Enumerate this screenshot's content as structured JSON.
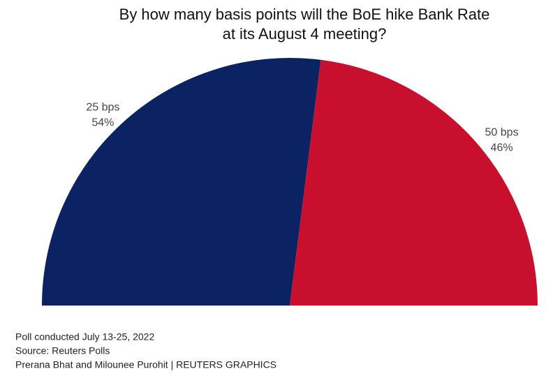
{
  "chart_data": {
    "type": "pie",
    "half": true,
    "title": [
      "By how many basis points will the BoE hike Bank Rate",
      "at its August 4 meeting?"
    ],
    "categories": [
      "25 bps",
      "50 bps"
    ],
    "values": [
      54,
      46
    ],
    "value_labels": [
      "54%",
      "46%"
    ],
    "colors": [
      "#0b2263",
      "#c8102e"
    ],
    "notes": [
      "Poll conducted July 13-25, 2022",
      "Source: Reuters Polls",
      "Prerana Bhat and Milounee Purohit | REUTERS GRAPHICS"
    ]
  }
}
